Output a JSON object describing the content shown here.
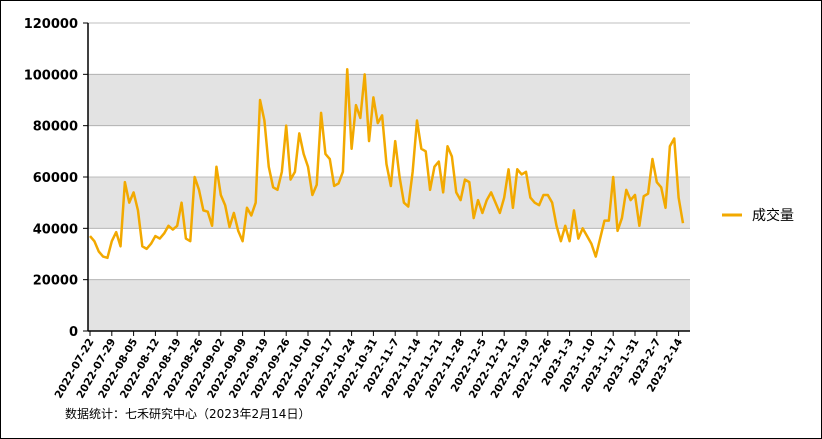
{
  "chart_data": {
    "type": "line",
    "note": "数据统计：七禾研究中心（2023年2月14日）",
    "categories": [
      "2022-07-22",
      null,
      null,
      null,
      null,
      "2022-07-29",
      null,
      null,
      null,
      null,
      "2022-08-05",
      null,
      null,
      null,
      null,
      "2022-08-12",
      null,
      null,
      null,
      null,
      "2022-08-19",
      null,
      null,
      null,
      null,
      "2022-08-26",
      null,
      null,
      null,
      null,
      "2022-09-02",
      null,
      null,
      null,
      null,
      "2022-09-09",
      null,
      null,
      null,
      null,
      "2022-09-19",
      null,
      null,
      null,
      null,
      "2022-09-26",
      null,
      null,
      null,
      null,
      "2022-10-10",
      null,
      null,
      null,
      null,
      "2022-10-17",
      null,
      null,
      null,
      null,
      "2022-10-24",
      null,
      null,
      null,
      null,
      "2022-10-31",
      null,
      null,
      null,
      null,
      "2022-11-7",
      null,
      null,
      null,
      null,
      "2022-11-14",
      null,
      null,
      null,
      null,
      "2022-11-21",
      null,
      null,
      null,
      null,
      "2022-11-28",
      null,
      null,
      null,
      null,
      "2022-12-5",
      null,
      null,
      null,
      null,
      "2022-12-12",
      null,
      null,
      null,
      null,
      "2022-12-19",
      null,
      null,
      null,
      null,
      "2022-12-26",
      null,
      null,
      null,
      null,
      "2023-1-3",
      null,
      null,
      null,
      null,
      "2023-1-10",
      null,
      null,
      null,
      null,
      "2023-1-17",
      null,
      null,
      null,
      null,
      "2023-1-31",
      null,
      null,
      null,
      null,
      "2023-2-7",
      null,
      null,
      null,
      null,
      "2023-2-14",
      null
    ],
    "series": [
      {
        "name": "成交量",
        "color": "#f2a900",
        "values": [
          37000,
          35000,
          31000,
          29000,
          28500,
          35000,
          38500,
          33000,
          58000,
          50000,
          54000,
          47000,
          33000,
          32000,
          34000,
          37000,
          36000,
          38000,
          41000,
          39500,
          41000,
          50000,
          36000,
          35000,
          60000,
          55000,
          47000,
          46500,
          41000,
          64000,
          53000,
          49000,
          40500,
          46000,
          39000,
          35000,
          48000,
          45000,
          50000,
          90000,
          82000,
          64000,
          56000,
          55000,
          62000,
          80000,
          59000,
          62000,
          77000,
          69000,
          64000,
          53000,
          57000,
          85000,
          69000,
          67000,
          56500,
          57500,
          62000,
          102000,
          71000,
          88000,
          83000,
          100000,
          74000,
          91000,
          81000,
          84000,
          65000,
          56500,
          74000,
          60000,
          50000,
          48500,
          62000,
          82000,
          71000,
          70000,
          55000,
          64000,
          66000,
          54000,
          72000,
          68000,
          54000,
          51000,
          59000,
          58000,
          44000,
          51000,
          46000,
          51000,
          54000,
          50000,
          46000,
          52000,
          63000,
          48000,
          63000,
          61000,
          62000,
          52000,
          50000,
          49000,
          53000,
          53000,
          50000,
          41000,
          35000,
          41000,
          35000,
          47000,
          36000,
          40000,
          37000,
          34000,
          29000,
          36000,
          43000,
          43000,
          60000,
          39000,
          44000,
          55000,
          51000,
          53000,
          41000,
          52500,
          53500,
          67000,
          58000,
          56000,
          48000,
          72000,
          75000,
          52000,
          42000
        ]
      }
    ],
    "ylim": [
      0,
      120000
    ],
    "yticks": [
      0,
      20000,
      40000,
      60000,
      80000,
      100000,
      120000
    ],
    "grid": true,
    "legend": "right"
  }
}
